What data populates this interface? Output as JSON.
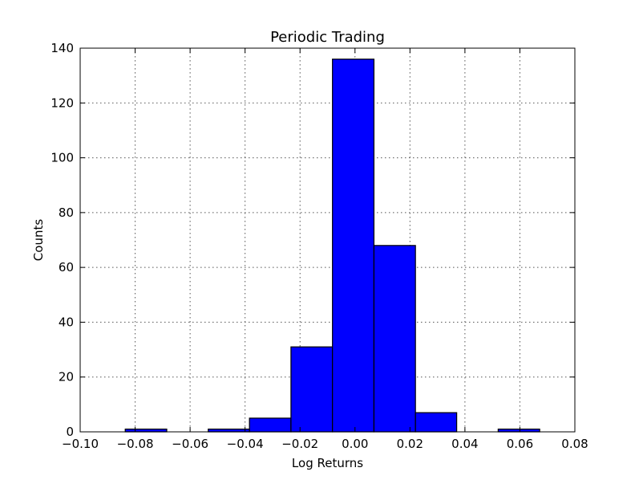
{
  "chart_data": {
    "type": "bar",
    "title": "Periodic Trading",
    "xlabel": "Log Returns",
    "ylabel": "Counts",
    "xlim": [
      -0.1,
      0.08
    ],
    "ylim": [
      0,
      140
    ],
    "xticks": [
      -0.1,
      -0.08,
      -0.06,
      -0.04,
      -0.02,
      0.0,
      0.02,
      0.04,
      0.06,
      0.08
    ],
    "xtick_labels": [
      "−0.10",
      "−0.08",
      "−0.06",
      "−0.04",
      "−0.02",
      "0.00",
      "0.02",
      "0.04",
      "0.06",
      "0.08"
    ],
    "yticks": [
      0,
      20,
      40,
      60,
      80,
      100,
      120,
      140
    ],
    "ytick_labels": [
      "0",
      "20",
      "40",
      "60",
      "80",
      "100",
      "120",
      "140"
    ],
    "bin_edges": [
      -0.0836,
      -0.0685,
      -0.0534,
      -0.0384,
      -0.0233,
      -0.0082,
      0.0069,
      0.022,
      0.037,
      0.0521,
      0.0672
    ],
    "values": [
      1,
      0,
      1,
      5,
      31,
      136,
      68,
      7,
      0,
      1
    ],
    "grid": true,
    "colors": {
      "bar_fill": "#0000ff",
      "bar_edge": "#000000",
      "grid": "#555555"
    }
  }
}
